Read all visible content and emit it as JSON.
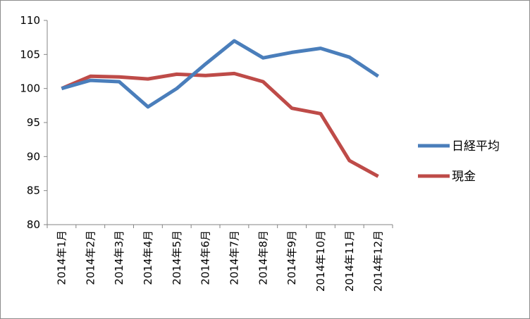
{
  "chart_data": {
    "type": "line",
    "title": "",
    "xlabel": "",
    "ylabel": "",
    "categories": [
      "2014年1月",
      "2014年2月",
      "2014年3月",
      "2014年4月",
      "2014年5月",
      "2014年6月",
      "2014年7月",
      "2014年8月",
      "2014年9月",
      "2014年10月",
      "2014年11月",
      "2014年12月"
    ],
    "ylim": [
      80,
      110
    ],
    "yticks": [
      80,
      85,
      90,
      95,
      100,
      105,
      110
    ],
    "grid": false,
    "legend_position": "right",
    "series": [
      {
        "name": "日経平均",
        "color": "#4a7ebb",
        "values": [
          100.0,
          101.2,
          101.0,
          97.3,
          100.0,
          103.6,
          107.0,
          104.5,
          105.3,
          105.9,
          104.6,
          101.8
        ]
      },
      {
        "name": "現金",
        "color": "#be4b48",
        "values": [
          100.0,
          101.8,
          101.7,
          101.4,
          102.1,
          101.9,
          102.2,
          101.0,
          97.1,
          96.3,
          89.4,
          87.1
        ]
      }
    ]
  }
}
